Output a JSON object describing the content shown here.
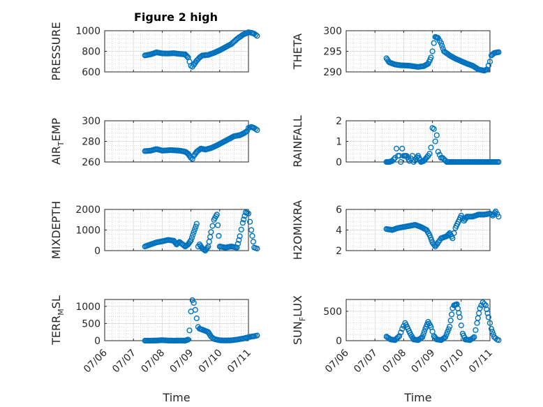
{
  "figure": {
    "title": "Figure 2 high",
    "marker_color": "#0072BD",
    "axis_color": "#262626",
    "grid_color": "#bfbfbf",
    "x_tick_labels": [
      "07/06",
      "07/07",
      "07/08",
      "07/09",
      "07/10",
      "07/11"
    ],
    "xlabel": "Time",
    "grid": "on"
  },
  "chart_data": [
    {
      "type": "scatter",
      "ylabel": "PRESSURE",
      "ylabel_sub": "",
      "ylabel_tail": "",
      "ylim": [
        600,
        1000
      ],
      "yticks": [
        "600",
        "800",
        "1000"
      ],
      "ytick_values": [
        600,
        800,
        1000
      ],
      "x_range": [
        "07/06",
        "07/11"
      ],
      "series": [
        {
          "keys": [
            [
              1.4,
              760
            ],
            [
              1.6,
              770
            ],
            [
              1.8,
              790
            ],
            [
              2.0,
              780
            ],
            [
              2.2,
              778
            ],
            [
              2.4,
              782
            ],
            [
              2.6,
              775
            ],
            [
              2.8,
              770
            ],
            [
              2.9,
              740
            ],
            [
              2.95,
              700
            ],
            [
              3.0,
              660
            ],
            [
              3.05,
              650
            ],
            [
              3.1,
              670
            ],
            [
              3.2,
              710
            ],
            [
              3.3,
              740
            ],
            [
              3.4,
              760
            ],
            [
              3.6,
              765
            ],
            [
              3.8,
              785
            ],
            [
              4.0,
              810
            ],
            [
              4.2,
              840
            ],
            [
              4.4,
              870
            ],
            [
              4.6,
              920
            ],
            [
              4.8,
              960
            ],
            [
              5.0,
              985
            ],
            [
              5.1,
              980
            ],
            [
              5.2,
              970
            ],
            [
              5.3,
              950
            ]
          ]
        }
      ]
    },
    {
      "type": "scatter",
      "ylabel": "THETA",
      "ylabel_sub": "",
      "ylabel_tail": "",
      "ylim": [
        290,
        300
      ],
      "yticks": [
        "290",
        "295",
        "300"
      ],
      "ytick_values": [
        290,
        295,
        300
      ],
      "x_range": [
        "07/06",
        "07/11"
      ],
      "series": [
        {
          "keys": [
            [
              1.4,
              293.3
            ],
            [
              1.5,
              292.3
            ],
            [
              1.7,
              291.8
            ],
            [
              1.9,
              291.6
            ],
            [
              2.2,
              291.5
            ],
            [
              2.5,
              291.2
            ],
            [
              2.7,
              291.4
            ],
            [
              2.85,
              292.0
            ],
            [
              2.95,
              293.5
            ],
            [
              3.0,
              295.0
            ],
            [
              3.05,
              297.0
            ],
            [
              3.1,
              298.5
            ],
            [
              3.2,
              298.2
            ],
            [
              3.3,
              297.0
            ],
            [
              3.4,
              295.0
            ],
            [
              3.6,
              294.0
            ],
            [
              3.8,
              293.2
            ],
            [
              4.0,
              292.6
            ],
            [
              4.2,
              292.0
            ],
            [
              4.4,
              291.5
            ],
            [
              4.6,
              290.6
            ],
            [
              4.8,
              290.3
            ],
            [
              4.9,
              290.6
            ],
            [
              5.0,
              292.5
            ],
            [
              5.05,
              294.0
            ],
            [
              5.15,
              294.6
            ],
            [
              5.3,
              294.8
            ]
          ]
        }
      ]
    },
    {
      "type": "scatter",
      "ylabel": "AIR",
      "ylabel_sub": "T",
      "ylabel_tail": "EMP",
      "ylim": [
        260,
        300
      ],
      "yticks": [
        "260",
        "280",
        "300"
      ],
      "ytick_values": [
        260,
        280,
        300
      ],
      "x_range": [
        "07/06",
        "07/11"
      ],
      "series": [
        {
          "keys": [
            [
              1.4,
              270.5
            ],
            [
              1.6,
              271
            ],
            [
              1.8,
              272.5
            ],
            [
              2.0,
              271
            ],
            [
              2.3,
              271.5
            ],
            [
              2.6,
              271
            ],
            [
              2.8,
              270
            ],
            [
              2.9,
              268
            ],
            [
              3.0,
              264
            ],
            [
              3.05,
              263
            ],
            [
              3.1,
              266
            ],
            [
              3.2,
              270
            ],
            [
              3.35,
              273
            ],
            [
              3.5,
              272
            ],
            [
              3.7,
              273.5
            ],
            [
              3.9,
              276
            ],
            [
              4.1,
              279
            ],
            [
              4.3,
              282
            ],
            [
              4.5,
              285
            ],
            [
              4.7,
              286
            ],
            [
              4.85,
              288
            ],
            [
              4.95,
              290
            ],
            [
              5.0,
              293
            ],
            [
              5.1,
              294
            ],
            [
              5.2,
              293
            ],
            [
              5.3,
              291
            ]
          ]
        }
      ]
    },
    {
      "type": "scatter",
      "ylabel": "RAINFALL",
      "ylabel_sub": "",
      "ylabel_tail": "",
      "ylim": [
        0,
        2
      ],
      "yticks": [
        "0",
        "1",
        "2"
      ],
      "ytick_values": [
        0,
        1,
        2
      ],
      "x_range": [
        "07/06",
        "07/11"
      ],
      "series": [
        {
          "keys": [
            [
              1.4,
              0
            ],
            [
              1.5,
              0
            ],
            [
              1.6,
              0.05
            ],
            [
              1.7,
              0.2
            ],
            [
              1.75,
              0.65
            ],
            [
              1.8,
              0.3
            ],
            [
              1.85,
              0.3
            ],
            [
              1.9,
              0
            ],
            [
              1.95,
              0.65
            ],
            [
              2.0,
              0.3
            ],
            [
              2.1,
              0.3
            ],
            [
              2.2,
              0.05
            ],
            [
              2.3,
              0.3
            ],
            [
              2.35,
              0
            ],
            [
              2.5,
              0.3
            ],
            [
              2.6,
              0
            ],
            [
              2.7,
              0.05
            ],
            [
              2.85,
              0.3
            ],
            [
              2.9,
              0.4
            ],
            [
              2.95,
              0.7
            ],
            [
              3.0,
              1.65
            ],
            [
              3.05,
              1.6
            ],
            [
              3.1,
              1.0
            ],
            [
              3.15,
              1.3
            ],
            [
              3.2,
              0.5
            ],
            [
              3.3,
              0.2
            ],
            [
              3.35,
              0.2
            ],
            [
              3.5,
              0
            ],
            [
              3.8,
              0
            ],
            [
              4.1,
              0
            ],
            [
              4.4,
              0
            ],
            [
              4.7,
              0
            ],
            [
              5.0,
              0
            ],
            [
              5.3,
              0
            ]
          ]
        }
      ]
    },
    {
      "type": "scatter",
      "ylabel": "MIXDEPTH",
      "ylabel_sub": "",
      "ylabel_tail": "",
      "ylim": [
        0,
        2000
      ],
      "yticks": [
        "0",
        "1000",
        "2000"
      ],
      "ytick_values": [
        0,
        1000,
        2000
      ],
      "x_range": [
        "07/06",
        "07/11"
      ],
      "series": [
        {
          "keys": [
            [
              1.4,
              200
            ],
            [
              1.6,
              300
            ],
            [
              1.8,
              400
            ],
            [
              2.0,
              450
            ],
            [
              2.2,
              520
            ],
            [
              2.4,
              480
            ],
            [
              2.5,
              300
            ],
            [
              2.6,
              420
            ],
            [
              2.8,
              200
            ],
            [
              2.9,
              300
            ],
            [
              3.0,
              500
            ],
            [
              3.1,
              900
            ],
            [
              3.2,
              1300
            ],
            [
              3.25,
              200
            ],
            [
              3.3,
              300
            ],
            [
              3.4,
              100
            ],
            [
              3.5,
              0
            ],
            [
              3.6,
              200
            ],
            [
              3.7,
              900
            ],
            [
              3.8,
              1500
            ],
            [
              3.9,
              1750
            ],
            [
              4.0,
              200
            ],
            [
              4.2,
              150
            ],
            [
              4.4,
              200
            ],
            [
              4.6,
              150
            ],
            [
              4.7,
              700
            ],
            [
              4.8,
              1350
            ],
            [
              4.9,
              1850
            ],
            [
              5.0,
              1800
            ],
            [
              5.1,
              1000
            ],
            [
              5.2,
              150
            ],
            [
              5.3,
              100
            ]
          ]
        }
      ]
    },
    {
      "type": "scatter",
      "ylabel": "H2OMIXRA",
      "ylabel_sub": "",
      "ylabel_tail": "",
      "ylim": [
        2,
        6
      ],
      "yticks": [
        "2",
        "4",
        "6"
      ],
      "ytick_values": [
        2,
        4,
        6
      ],
      "x_range": [
        "07/06",
        "07/11"
      ],
      "series": [
        {
          "keys": [
            [
              1.4,
              4.1
            ],
            [
              1.6,
              4.0
            ],
            [
              1.8,
              4.2
            ],
            [
              2.0,
              4.3
            ],
            [
              2.2,
              4.4
            ],
            [
              2.4,
              4.5
            ],
            [
              2.6,
              4.3
            ],
            [
              2.8,
              4.0
            ],
            [
              2.9,
              3.5
            ],
            [
              3.0,
              2.8
            ],
            [
              3.1,
              2.4
            ],
            [
              3.2,
              2.8
            ],
            [
              3.3,
              3.2
            ],
            [
              3.5,
              3.4
            ],
            [
              3.6,
              3.7
            ],
            [
              3.7,
              3.2
            ],
            [
              3.8,
              4.2
            ],
            [
              3.9,
              4.8
            ],
            [
              4.0,
              5.4
            ],
            [
              4.1,
              4.9
            ],
            [
              4.2,
              5.3
            ],
            [
              4.4,
              5.3
            ],
            [
              4.6,
              5.5
            ],
            [
              4.8,
              5.5
            ],
            [
              5.0,
              5.6
            ],
            [
              5.1,
              5.4
            ],
            [
              5.2,
              5.8
            ],
            [
              5.3,
              5.3
            ]
          ]
        }
      ]
    },
    {
      "type": "scatter",
      "ylabel": "TERR",
      "ylabel_sub": "M",
      "ylabel_tail": "SL",
      "ylim": [
        0,
        1200
      ],
      "yticks": [
        "0",
        "500",
        "1000"
      ],
      "ytick_values": [
        0,
        500,
        1000
      ],
      "x_range": [
        "07/06",
        "07/11"
      ],
      "series": [
        {
          "keys": [
            [
              1.4,
              0
            ],
            [
              1.6,
              0
            ],
            [
              1.8,
              5
            ],
            [
              2.0,
              15
            ],
            [
              2.2,
              5
            ],
            [
              2.4,
              0
            ],
            [
              2.6,
              5
            ],
            [
              2.8,
              0
            ],
            [
              2.9,
              30
            ],
            [
              2.95,
              300
            ],
            [
              3.0,
              850
            ],
            [
              3.05,
              1180
            ],
            [
              3.1,
              1100
            ],
            [
              3.15,
              900
            ],
            [
              3.2,
              650
            ],
            [
              3.25,
              400
            ],
            [
              3.3,
              350
            ],
            [
              3.4,
              320
            ],
            [
              3.6,
              250
            ],
            [
              3.7,
              120
            ],
            [
              3.8,
              50
            ],
            [
              4.0,
              10
            ],
            [
              4.2,
              5
            ],
            [
              4.4,
              10
            ],
            [
              4.6,
              30
            ],
            [
              4.8,
              60
            ],
            [
              5.0,
              100
            ],
            [
              5.1,
              120
            ],
            [
              5.2,
              130
            ],
            [
              5.3,
              150
            ]
          ]
        }
      ]
    },
    {
      "type": "scatter",
      "ylabel": "SUN",
      "ylabel_sub": "F",
      "ylabel_tail": "LUX",
      "ylim": [
        0,
        700
      ],
      "yticks": [
        "0",
        "500"
      ],
      "ytick_values": [
        0,
        500
      ],
      "x_range": [
        "07/06",
        "07/11"
      ],
      "series": [
        {
          "keys": [
            [
              1.4,
              70
            ],
            [
              1.55,
              20
            ],
            [
              1.7,
              10
            ],
            [
              1.85,
              80
            ],
            [
              1.95,
              200
            ],
            [
              2.05,
              300
            ],
            [
              2.15,
              200
            ],
            [
              2.25,
              100
            ],
            [
              2.35,
              20
            ],
            [
              2.5,
              10
            ],
            [
              2.65,
              60
            ],
            [
              2.75,
              200
            ],
            [
              2.85,
              320
            ],
            [
              2.95,
              230
            ],
            [
              3.05,
              80
            ],
            [
              3.15,
              20
            ],
            [
              3.3,
              10
            ],
            [
              3.45,
              60
            ],
            [
              3.6,
              240
            ],
            [
              3.7,
              550
            ],
            [
              3.75,
              600
            ],
            [
              3.85,
              620
            ],
            [
              3.95,
              400
            ],
            [
              4.05,
              120
            ],
            [
              4.15,
              20
            ],
            [
              4.3,
              10
            ],
            [
              4.45,
              60
            ],
            [
              4.55,
              300
            ],
            [
              4.65,
              550
            ],
            [
              4.75,
              650
            ],
            [
              4.85,
              600
            ],
            [
              4.95,
              400
            ],
            [
              5.05,
              200
            ],
            [
              5.15,
              60
            ],
            [
              5.25,
              20
            ],
            [
              5.3,
              10
            ]
          ]
        }
      ]
    }
  ]
}
